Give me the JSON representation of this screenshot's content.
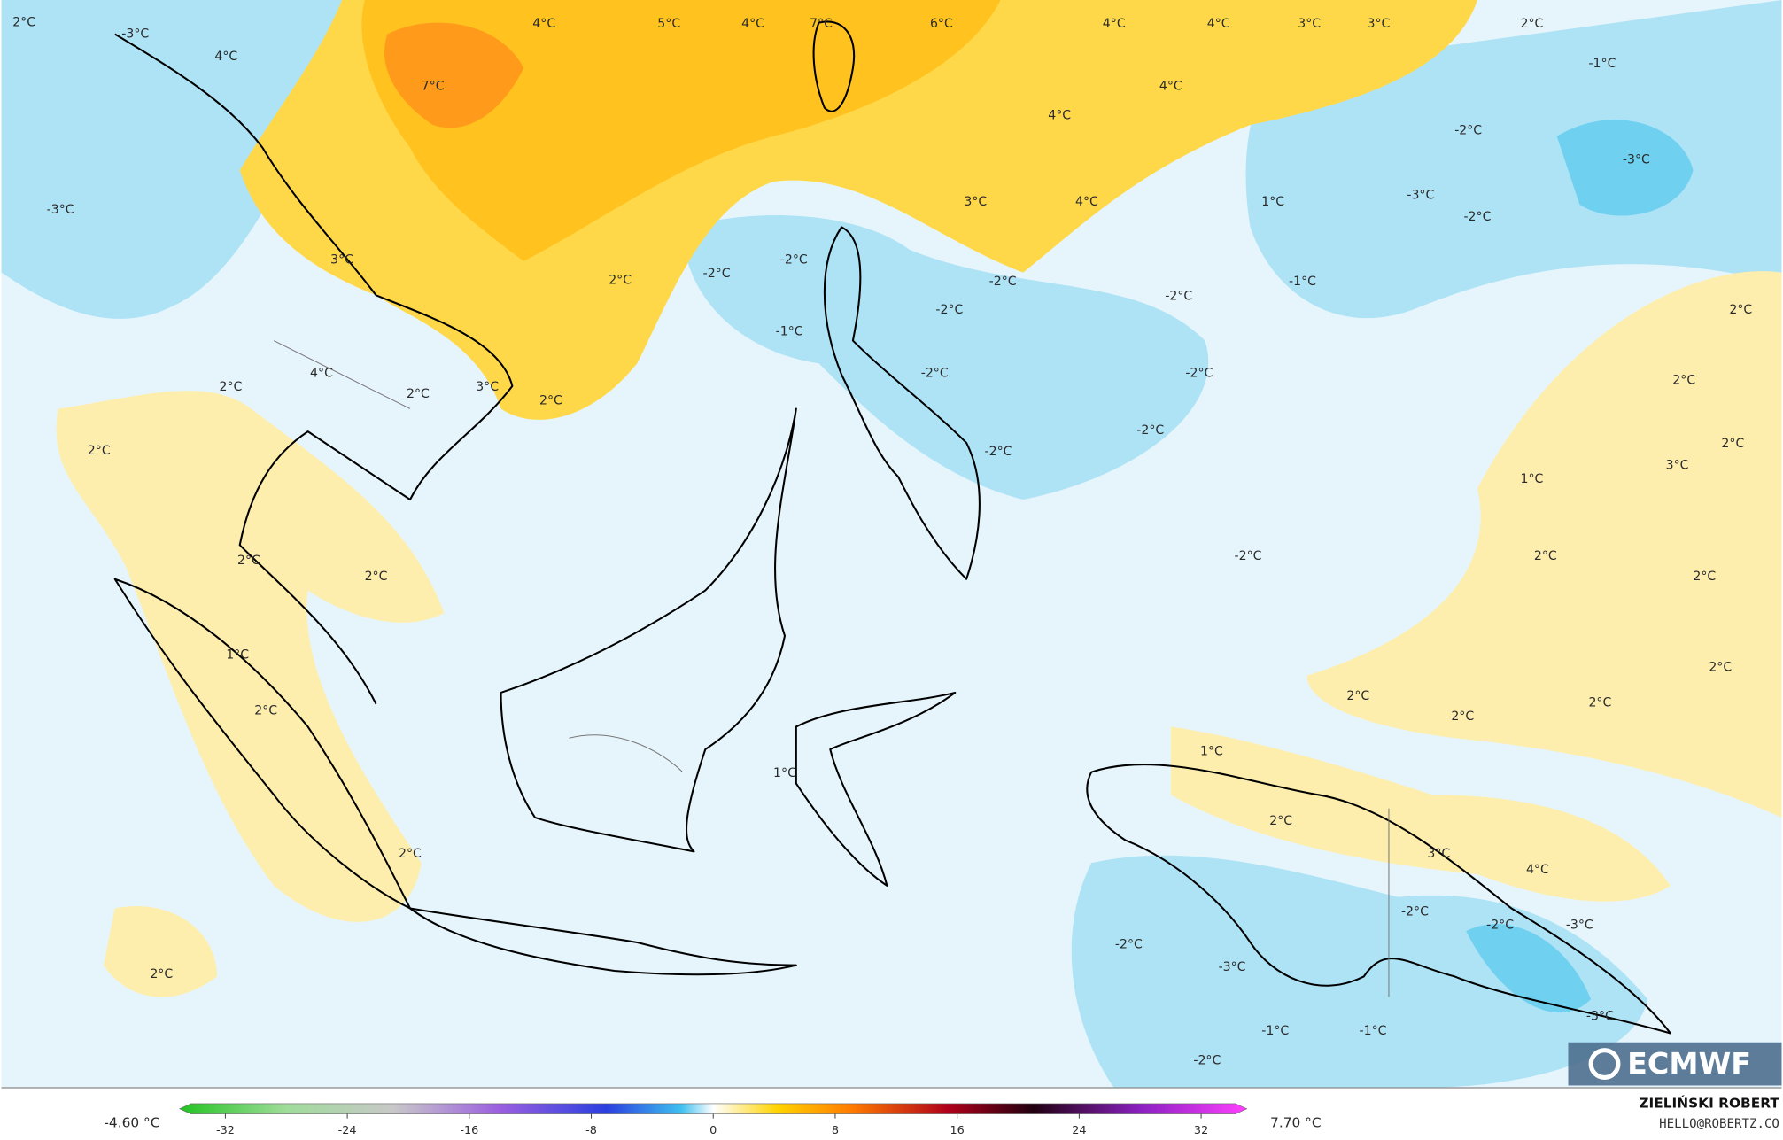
{
  "map": {
    "labels": [
      "2°C",
      "-3°C",
      "4°C",
      "4°C",
      "5°C",
      "4°C",
      "7°C",
      "6°C",
      "4°C",
      "4°C",
      "3°C",
      "3°C",
      "2°C",
      "-1°C",
      "7°C",
      "4°C",
      "4°C",
      "-2°C",
      "-3°C",
      "-3°C",
      "3°C",
      "4°C",
      "1°C",
      "-3°C",
      "-2°C",
      "-2°C",
      "-2°C",
      "3°C",
      "2°C",
      "-2°C",
      "-1°C",
      "-2°C",
      "-2°C",
      "2°C",
      "-1°C",
      "2°C",
      "-2°C",
      "-2°C",
      "4°C",
      "2°C",
      "2°C",
      "3°C",
      "2°C",
      "-2°C",
      "2°C",
      "2°C",
      "-2°C",
      "3°C",
      "1°C",
      "-2°C",
      "2°C",
      "2°C",
      "2°C",
      "2°C",
      "1°C",
      "2°C",
      "2°C",
      "2°C",
      "2°C",
      "2°C",
      "1°C",
      "1°C",
      "2°C",
      "3°C",
      "4°C",
      "2°C",
      "-2°C",
      "-2°C",
      "-3°C",
      "-2°C",
      "-3°C",
      "2°C",
      "-3°C",
      "-1°C",
      "-1°C",
      "-2°C"
    ]
  },
  "legend": {
    "min_label": "-4.60 °C",
    "max_label": "7.70 °C",
    "range": [
      -35,
      35
    ],
    "ticks": [
      -32,
      -24,
      -16,
      -8,
      0,
      8,
      16,
      24,
      32
    ]
  },
  "credits": {
    "author": "ZIELIŃSKI ROBERT",
    "email": "HELLO@ROBERTZ.CO",
    "logo": "ECMWF"
  }
}
